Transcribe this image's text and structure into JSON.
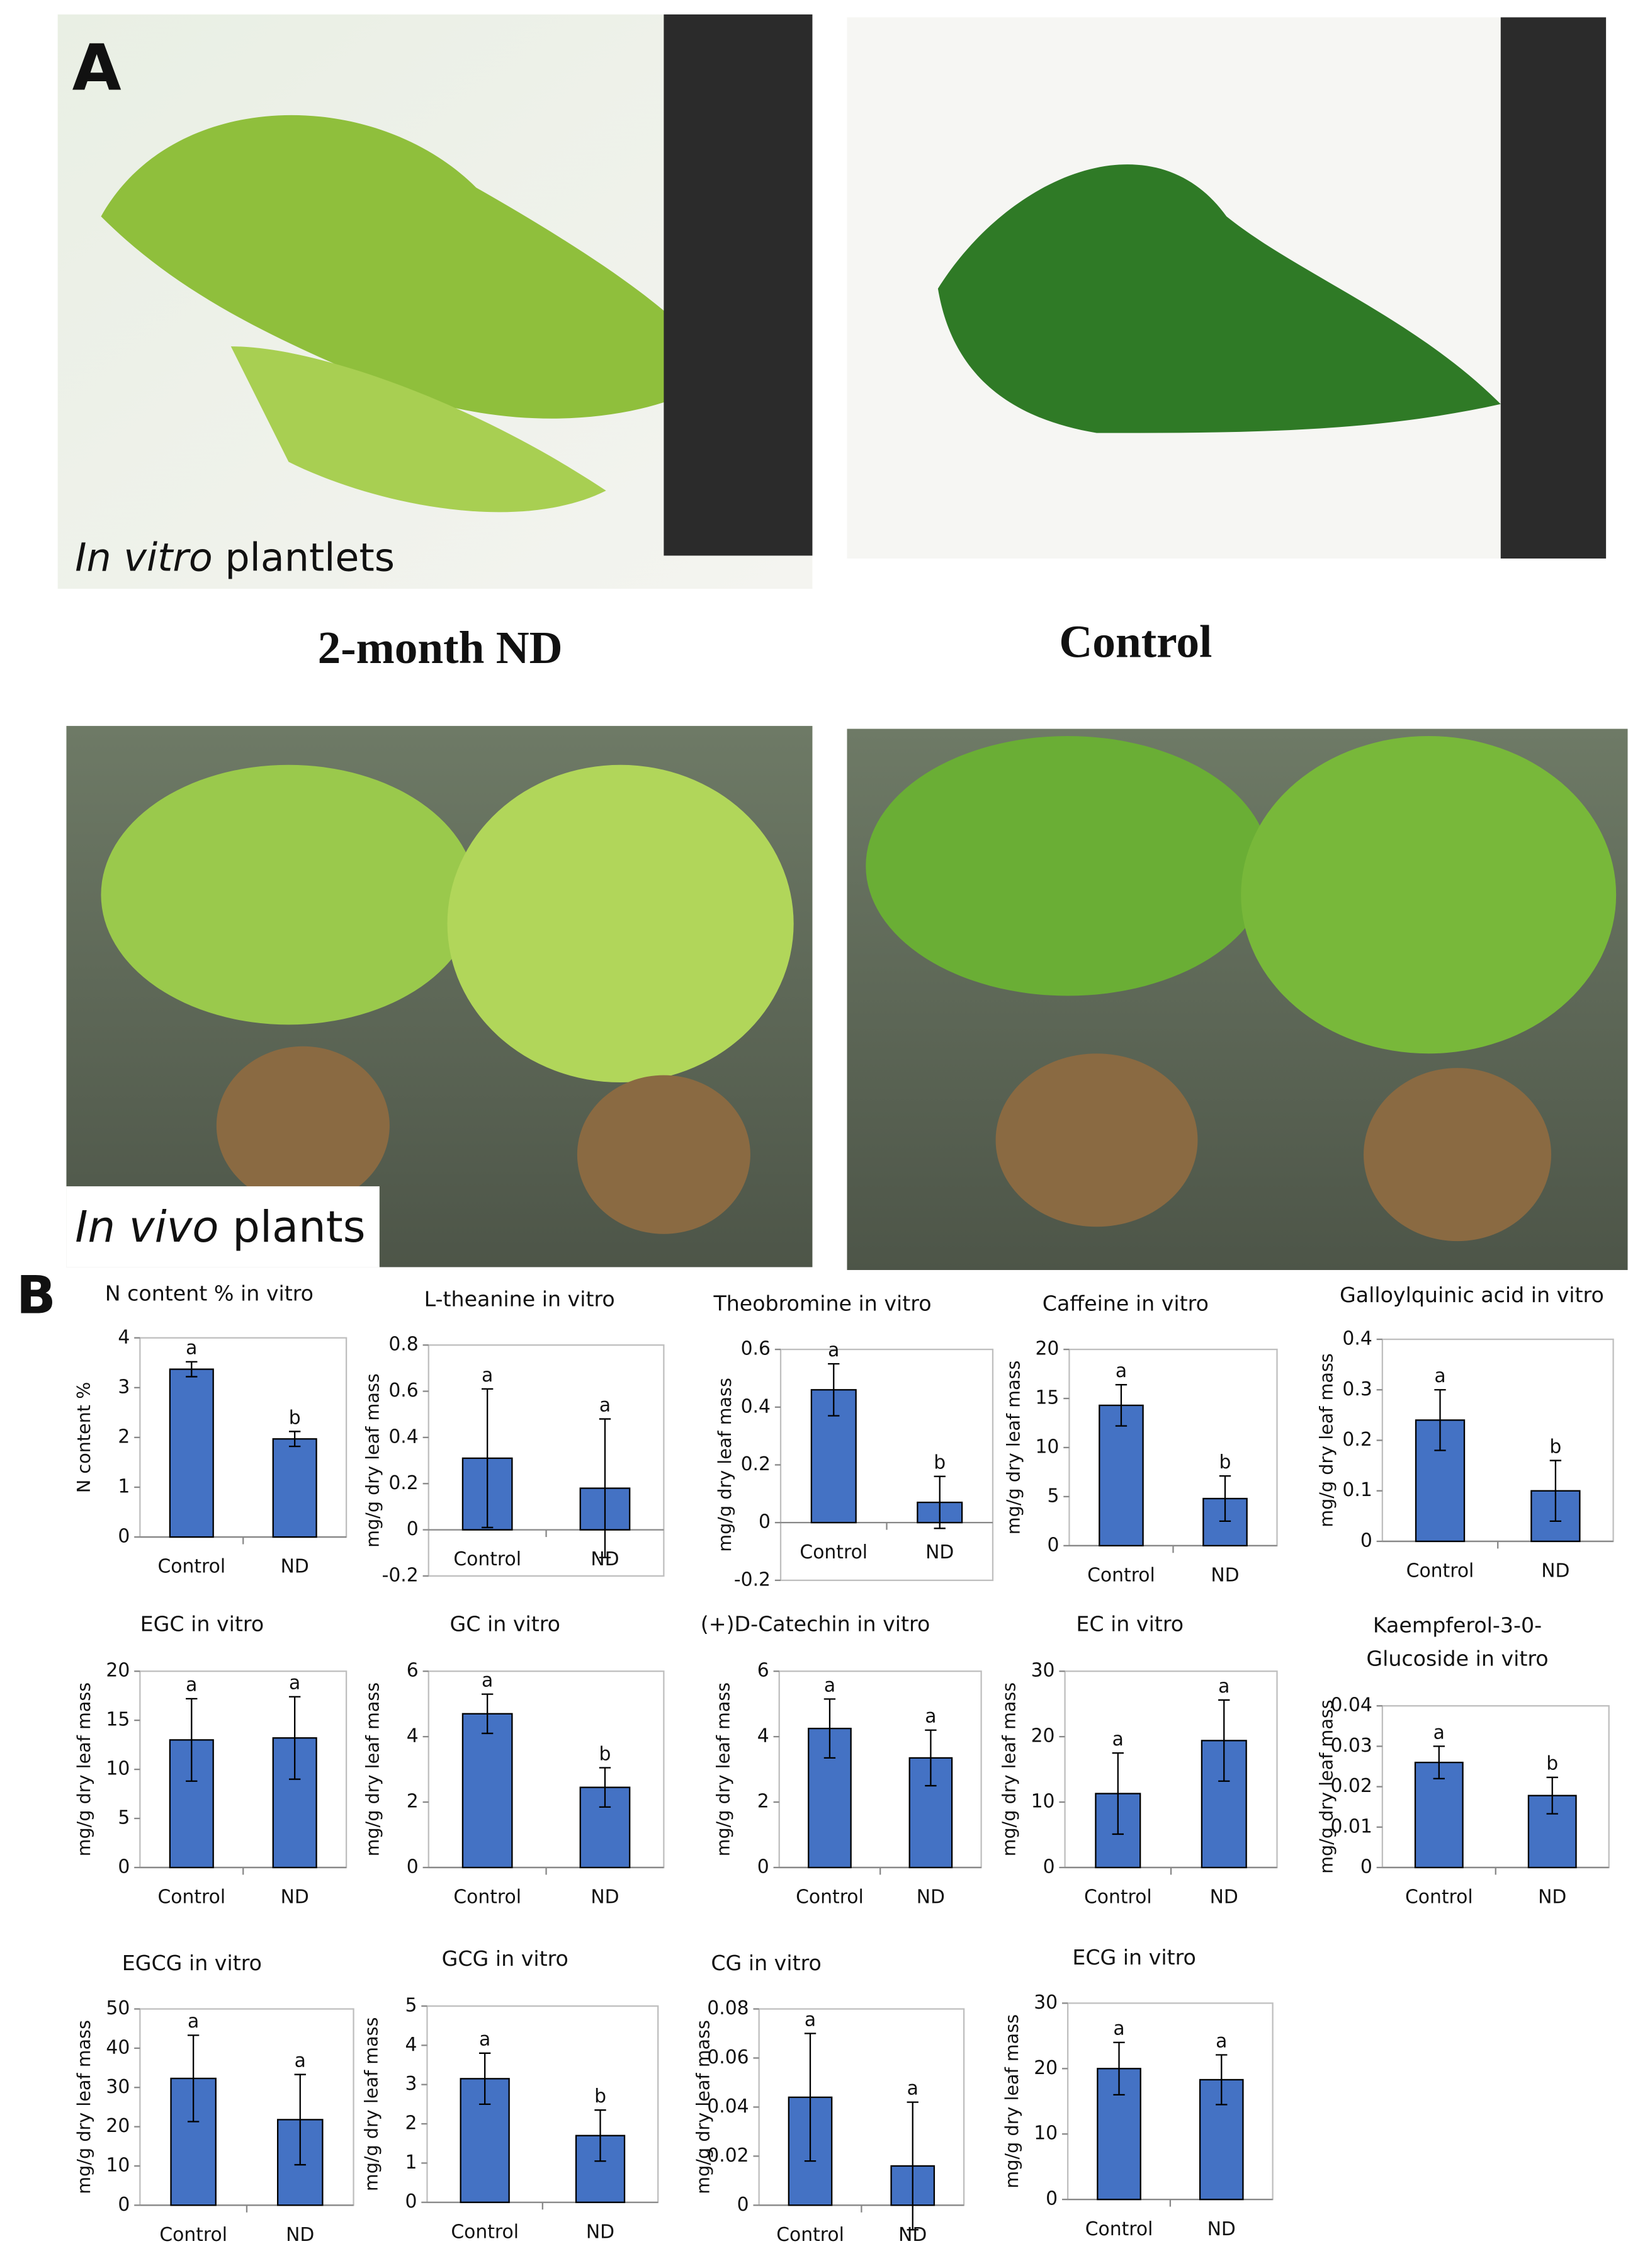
{
  "panel_labels": {
    "a": "A",
    "b": "B"
  },
  "photo_captions": {
    "in_vitro": [
      "In vitro",
      " plantlets"
    ],
    "in_vivo": [
      "In vivo",
      " plants"
    ]
  },
  "column_labels": {
    "treatment": "2-month ND",
    "control": "Control"
  },
  "chart_data": [
    {
      "type": "bar",
      "title": "N content % in vitro",
      "ylabel": "N content %",
      "categories": [
        "Control",
        "ND"
      ],
      "values": [
        3.37,
        1.97
      ],
      "errors": [
        0.15,
        0.15
      ],
      "annotations": [
        "a",
        "b"
      ],
      "color": "#4472c4",
      "ylim": [
        0,
        4
      ],
      "yticks": [
        0,
        1,
        2,
        3,
        4
      ]
    },
    {
      "type": "bar",
      "title": "L-theanine in vitro",
      "ylabel": "mg/g dry leaf mass",
      "categories": [
        "Control",
        "ND"
      ],
      "values": [
        0.31,
        0.18
      ],
      "errors": [
        0.3,
        0.3
      ],
      "annotations": [
        "a",
        "a"
      ],
      "color": "#4472c4",
      "ylim": [
        -0.2,
        0.8
      ],
      "yticks": [
        -0.2,
        0,
        0.2,
        0.4,
        0.6,
        0.8
      ]
    },
    {
      "type": "bar",
      "title": "Theobromine in vitro",
      "ylabel": "mg/g dry leaf mass",
      "categories": [
        "Control",
        "ND"
      ],
      "values": [
        0.46,
        0.07
      ],
      "errors": [
        0.09,
        0.09
      ],
      "annotations": [
        "a",
        "b"
      ],
      "color": "#4472c4",
      "ylim": [
        -0.2,
        0.6
      ],
      "yticks": [
        -0.2,
        0,
        0.2,
        0.4,
        0.6
      ]
    },
    {
      "type": "bar",
      "title": "Caffeine in vitro",
      "ylabel": "mg/g dry leaf mass",
      "categories": [
        "Control",
        "ND"
      ],
      "values": [
        14.3,
        4.8
      ],
      "errors": [
        2.1,
        2.3
      ],
      "annotations": [
        "a",
        "b"
      ],
      "color": "#4472c4",
      "ylim": [
        0,
        20
      ],
      "yticks": [
        0,
        5,
        10,
        15,
        20
      ]
    },
    {
      "type": "bar",
      "title": "Galloylquinic acid in vitro",
      "ylabel": "mg/g dry leaf mass",
      "categories": [
        "Control",
        "ND"
      ],
      "values": [
        0.24,
        0.1
      ],
      "errors": [
        0.06,
        0.06
      ],
      "annotations": [
        "a",
        "b"
      ],
      "color": "#4472c4",
      "ylim": [
        0,
        0.4
      ],
      "yticks": [
        0,
        0.1,
        0.2,
        0.3,
        0.4
      ]
    },
    {
      "type": "bar",
      "title": "EGC in vitro",
      "ylabel": "mg/g dry leaf mass",
      "categories": [
        "Control",
        "ND"
      ],
      "values": [
        13,
        13.2
      ],
      "errors": [
        4.2,
        4.2
      ],
      "annotations": [
        "a",
        "a"
      ],
      "color": "#4472c4",
      "ylim": [
        0,
        20
      ],
      "yticks": [
        0,
        5,
        10,
        15,
        20
      ]
    },
    {
      "type": "bar",
      "title": "GC in vitro",
      "ylabel": "mg/g dry leaf mass",
      "categories": [
        "Control",
        "ND"
      ],
      "values": [
        4.7,
        2.45
      ],
      "errors": [
        0.6,
        0.6
      ],
      "annotations": [
        "a",
        "b"
      ],
      "color": "#4472c4",
      "ylim": [
        0,
        6
      ],
      "yticks": [
        0,
        2,
        4,
        6
      ]
    },
    {
      "type": "bar",
      "title": "(+)D-Catechin in vitro",
      "ylabel": "mg/g dry leaf mass",
      "categories": [
        "Control",
        "ND"
      ],
      "values": [
        4.25,
        3.35
      ],
      "errors": [
        0.9,
        0.85
      ],
      "annotations": [
        "a",
        "a"
      ],
      "color": "#4472c4",
      "ylim": [
        0,
        6
      ],
      "yticks": [
        0,
        2,
        4,
        6
      ]
    },
    {
      "type": "bar",
      "title": "EC in vitro",
      "ylabel": "mg/g dry leaf mass",
      "categories": [
        "Control",
        "ND"
      ],
      "values": [
        11.3,
        19.4
      ],
      "errors": [
        6.2,
        6.2
      ],
      "annotations": [
        "a",
        "a"
      ],
      "color": "#4472c4",
      "ylim": [
        0,
        30
      ],
      "yticks": [
        0,
        10,
        20,
        30
      ]
    },
    {
      "type": "bar",
      "title": [
        "Kaempferol-3-0-",
        "Glucoside in vitro"
      ],
      "ylabel": "mg/g dry leaf mass",
      "categories": [
        "Control",
        "ND"
      ],
      "values": [
        0.026,
        0.0178
      ],
      "errors": [
        0.004,
        0.0045
      ],
      "annotations": [
        "a",
        "b"
      ],
      "color": "#4472c4",
      "ylim": [
        0,
        0.04
      ],
      "yticks": [
        0,
        0.01,
        0.02,
        0.03,
        0.04
      ]
    },
    {
      "type": "bar",
      "title": "EGCG in vitro",
      "ylabel": "mg/g dry leaf mass",
      "categories": [
        "Control",
        "ND"
      ],
      "values": [
        32.3,
        21.8
      ],
      "errors": [
        11,
        11.5
      ],
      "annotations": [
        "a",
        "a"
      ],
      "color": "#4472c4",
      "ylim": [
        0,
        50
      ],
      "yticks": [
        0,
        10,
        20,
        30,
        40,
        50
      ]
    },
    {
      "type": "bar",
      "title": "GCG in vitro",
      "ylabel": "mg/g dry leaf mass",
      "categories": [
        "Control",
        "ND"
      ],
      "values": [
        3.15,
        1.7
      ],
      "errors": [
        0.65,
        0.65
      ],
      "annotations": [
        "a",
        "b"
      ],
      "color": "#4472c4",
      "ylim": [
        0,
        5
      ],
      "yticks": [
        0,
        1,
        2,
        3,
        4,
        5
      ]
    },
    {
      "type": "bar",
      "title": "CG in vitro",
      "ylabel": "mg/g dry leaf mass",
      "categories": [
        "Control",
        "ND"
      ],
      "values": [
        0.044,
        0.016
      ],
      "errors": [
        0.026,
        0.026
      ],
      "annotations": [
        "a",
        "a"
      ],
      "color": "#4472c4",
      "ylim": [
        0,
        0.08
      ],
      "yticks": [
        0,
        0.02,
        0.04,
        0.06,
        0.08
      ]
    },
    {
      "type": "bar",
      "title": "ECG in vitro",
      "ylabel": "mg/g dry leaf mass",
      "categories": [
        "Control",
        "ND"
      ],
      "values": [
        20,
        18.3
      ],
      "errors": [
        4,
        3.8
      ],
      "annotations": [
        "a",
        "a"
      ],
      "color": "#4472c4",
      "ylim": [
        0,
        30
      ],
      "yticks": [
        0,
        10,
        20,
        30
      ]
    }
  ]
}
